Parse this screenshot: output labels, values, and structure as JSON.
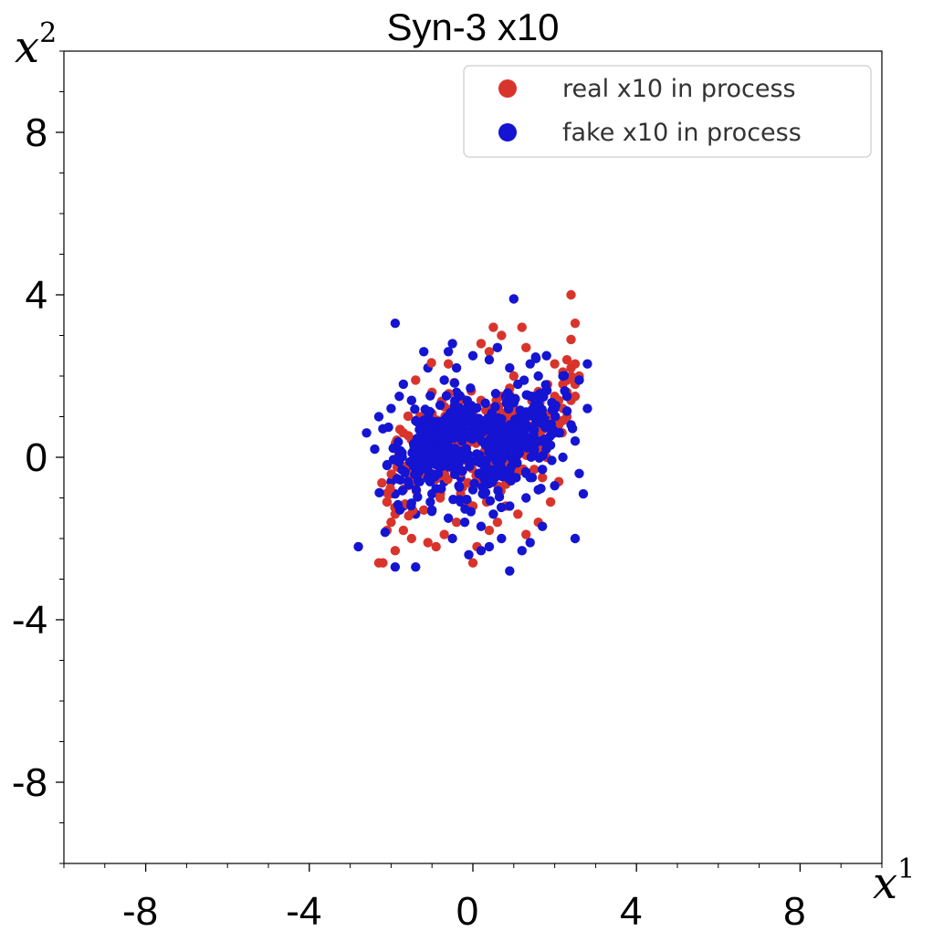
{
  "chart_data": {
    "type": "scatter",
    "title": "Syn-3 x10",
    "xlabel": {
      "var": "x",
      "sup": "1"
    },
    "ylabel": {
      "var": "x",
      "sup": "2"
    },
    "xlim": [
      -10,
      10
    ],
    "ylim": [
      -10,
      10
    ],
    "xticks": [
      -8,
      -4,
      0,
      4,
      8
    ],
    "yticks": [
      -8,
      -4,
      0,
      4,
      8
    ],
    "minor_tick_step": 1,
    "grid": false,
    "legend_position": "top-right",
    "series": [
      {
        "name": "real x10 in process",
        "color": "#d9342b",
        "points": [
          [
            2.4,
            4.0
          ],
          [
            2.5,
            3.3
          ],
          [
            2.4,
            2.9
          ],
          [
            1.2,
            3.2
          ],
          [
            0.5,
            3.2
          ],
          [
            0.7,
            3.0
          ],
          [
            0.2,
            2.8
          ],
          [
            0.4,
            2.6
          ],
          [
            1.3,
            2.7
          ],
          [
            2.3,
            2.4
          ],
          [
            2.5,
            2.3
          ],
          [
            2.4,
            2.0
          ],
          [
            2.5,
            1.8
          ],
          [
            2.3,
            1.6
          ],
          [
            2.4,
            1.4
          ],
          [
            2.2,
            1.2
          ],
          [
            2.3,
            1.0
          ],
          [
            2.1,
            0.8
          ],
          [
            2.4,
            2.2
          ],
          [
            2.2,
            2.1
          ],
          [
            2.6,
            2.0
          ],
          [
            2.5,
            1.5
          ],
          [
            2.2,
            1.8
          ],
          [
            2.0,
            1.5
          ],
          [
            1.9,
            1.1
          ],
          [
            2.1,
            1.4
          ],
          [
            2.3,
            1.9
          ],
          [
            1.0,
            2.0
          ],
          [
            0.7,
            1.5
          ],
          [
            1.5,
            1.3
          ],
          [
            1.2,
            0.9
          ],
          [
            0.5,
            0.5
          ],
          [
            0.8,
            0.2
          ],
          [
            0.3,
            -0.3
          ],
          [
            0.1,
            -0.6
          ],
          [
            0.0,
            -1.2
          ],
          [
            -1.4,
            1.9
          ],
          [
            -0.6,
            2.3
          ],
          [
            -1.0,
            1.6
          ],
          [
            -1.3,
            1.0
          ],
          [
            -0.7,
            0.8
          ],
          [
            -0.2,
            0.3
          ],
          [
            -0.5,
            -0.2
          ],
          [
            -1.0,
            -0.4
          ],
          [
            -1.6,
            -0.2
          ],
          [
            -1.9,
            -0.5
          ],
          [
            -2.0,
            -0.9
          ],
          [
            -2.1,
            -1.1
          ],
          [
            -1.9,
            -1.4
          ],
          [
            -2.0,
            -1.6
          ],
          [
            -1.7,
            -1.8
          ],
          [
            -2.1,
            -1.8
          ],
          [
            -2.3,
            -2.6
          ],
          [
            -2.2,
            -2.6
          ],
          [
            -1.9,
            -2.3
          ],
          [
            -1.5,
            -2.0
          ],
          [
            -1.1,
            -2.1
          ],
          [
            -0.7,
            -1.9
          ],
          [
            -0.9,
            -2.2
          ],
          [
            -0.4,
            -1.6
          ],
          [
            0.0,
            -2.6
          ],
          [
            0.1,
            -2.2
          ],
          [
            0.4,
            -1.8
          ],
          [
            0.6,
            -1.6
          ],
          [
            1.1,
            -1.4
          ],
          [
            1.3,
            -1.9
          ],
          [
            1.6,
            -1.6
          ],
          [
            0.8,
            -1.2
          ],
          [
            1.9,
            -1.1
          ],
          [
            2.1,
            -0.6
          ],
          [
            1.7,
            -0.5
          ],
          [
            1.5,
            -0.3
          ],
          [
            -0.3,
            1.1
          ],
          [
            0.2,
            1.4
          ],
          [
            1.6,
            0.4
          ],
          [
            1.8,
            0.0
          ],
          [
            -1.2,
            -1.3
          ],
          [
            -0.8,
            -1.0
          ],
          [
            -0.3,
            -0.9
          ],
          [
            0.4,
            0.9
          ],
          [
            -1.7,
            0.6
          ],
          [
            -1.5,
            1.4
          ],
          [
            0.9,
            1.7
          ],
          [
            2.0,
            2.3
          ]
        ]
      },
      {
        "name": "fake x10 in process",
        "color": "#1414d2",
        "points": [
          [
            1.0,
            3.9
          ],
          [
            -1.9,
            3.3
          ],
          [
            -0.5,
            2.8
          ],
          [
            -0.6,
            2.6
          ],
          [
            -1.2,
            2.6
          ],
          [
            0.0,
            2.5
          ],
          [
            0.4,
            2.4
          ],
          [
            1.8,
            2.5
          ],
          [
            2.8,
            2.3
          ],
          [
            -1.1,
            2.2
          ],
          [
            -0.4,
            2.2
          ],
          [
            0.9,
            2.2
          ],
          [
            1.4,
            2.3
          ],
          [
            2.2,
            2.0
          ],
          [
            2.6,
            1.9
          ],
          [
            -1.8,
            1.5
          ],
          [
            -1.5,
            1.4
          ],
          [
            -2.0,
            1.2
          ],
          [
            -2.3,
            1.0
          ],
          [
            -2.6,
            0.6
          ],
          [
            -2.2,
            0.7
          ],
          [
            -1.9,
            0.3
          ],
          [
            -1.8,
            0.0
          ],
          [
            -1.6,
            -0.4
          ],
          [
            -2.0,
            -0.6
          ],
          [
            -1.9,
            -0.9
          ],
          [
            -1.7,
            -1.2
          ],
          [
            -1.4,
            -1.4
          ],
          [
            -1.0,
            -1.3
          ],
          [
            -0.6,
            -1.5
          ],
          [
            -0.2,
            -1.6
          ],
          [
            0.2,
            -1.7
          ],
          [
            0.5,
            -1.4
          ],
          [
            0.9,
            -1.2
          ],
          [
            1.3,
            -1.0
          ],
          [
            1.6,
            -0.8
          ],
          [
            2.0,
            -0.7
          ],
          [
            2.6,
            -0.4
          ],
          [
            2.7,
            -0.9
          ],
          [
            2.5,
            0.4
          ],
          [
            2.4,
            0.8
          ],
          [
            2.8,
            1.2
          ],
          [
            2.3,
            1.5
          ],
          [
            -2.8,
            -2.2
          ],
          [
            -1.9,
            -2.7
          ],
          [
            -1.4,
            -2.7
          ],
          [
            -0.5,
            -2.0
          ],
          [
            -0.1,
            -2.4
          ],
          [
            0.2,
            -2.3
          ],
          [
            0.4,
            -2.2
          ],
          [
            0.7,
            -2.0
          ],
          [
            0.9,
            -2.8
          ],
          [
            1.2,
            -2.3
          ],
          [
            1.4,
            -2.1
          ],
          [
            1.7,
            -1.7
          ],
          [
            2.5,
            -2.0
          ],
          [
            -0.3,
            -1.1
          ],
          [
            0.0,
            -0.8
          ],
          [
            0.3,
            -0.5
          ],
          [
            0.6,
            -0.2
          ],
          [
            0.9,
            0.1
          ],
          [
            1.2,
            0.3
          ],
          [
            1.5,
            0.6
          ],
          [
            1.8,
            0.9
          ],
          [
            2.0,
            1.2
          ],
          [
            1.6,
            1.4
          ],
          [
            1.3,
            1.1
          ],
          [
            1.0,
            0.8
          ],
          [
            0.7,
            0.5
          ],
          [
            0.4,
            0.2
          ],
          [
            0.1,
            -0.1
          ],
          [
            -0.2,
            0.2
          ],
          [
            -0.5,
            0.5
          ],
          [
            -0.8,
            0.8
          ],
          [
            -1.1,
            1.1
          ],
          [
            -1.4,
            0.9
          ],
          [
            -1.2,
            0.4
          ],
          [
            -0.9,
            0.1
          ],
          [
            -0.6,
            -0.2
          ],
          [
            -0.3,
            -0.5
          ],
          [
            -1.5,
            -0.1
          ],
          [
            -1.3,
            -0.6
          ],
          [
            -1.0,
            -0.9
          ],
          [
            -0.7,
            -0.6
          ],
          [
            0.5,
            1.2
          ],
          [
            0.8,
            1.5
          ],
          [
            1.1,
            1.8
          ],
          [
            0.3,
            0.9
          ],
          [
            -0.1,
            1.3
          ],
          [
            -0.4,
            1.6
          ],
          [
            -0.7,
            1.9
          ],
          [
            1.9,
            0.3
          ],
          [
            2.2,
            0.0
          ],
          [
            1.7,
            -0.3
          ],
          [
            1.4,
            -0.5
          ],
          [
            2.1,
            0.6
          ],
          [
            -2.4,
            0.2
          ],
          [
            -2.1,
            -0.2
          ],
          [
            -1.7,
            1.8
          ],
          [
            0.6,
            2.7
          ],
          [
            1.6,
            2.0
          ]
        ]
      }
    ]
  }
}
